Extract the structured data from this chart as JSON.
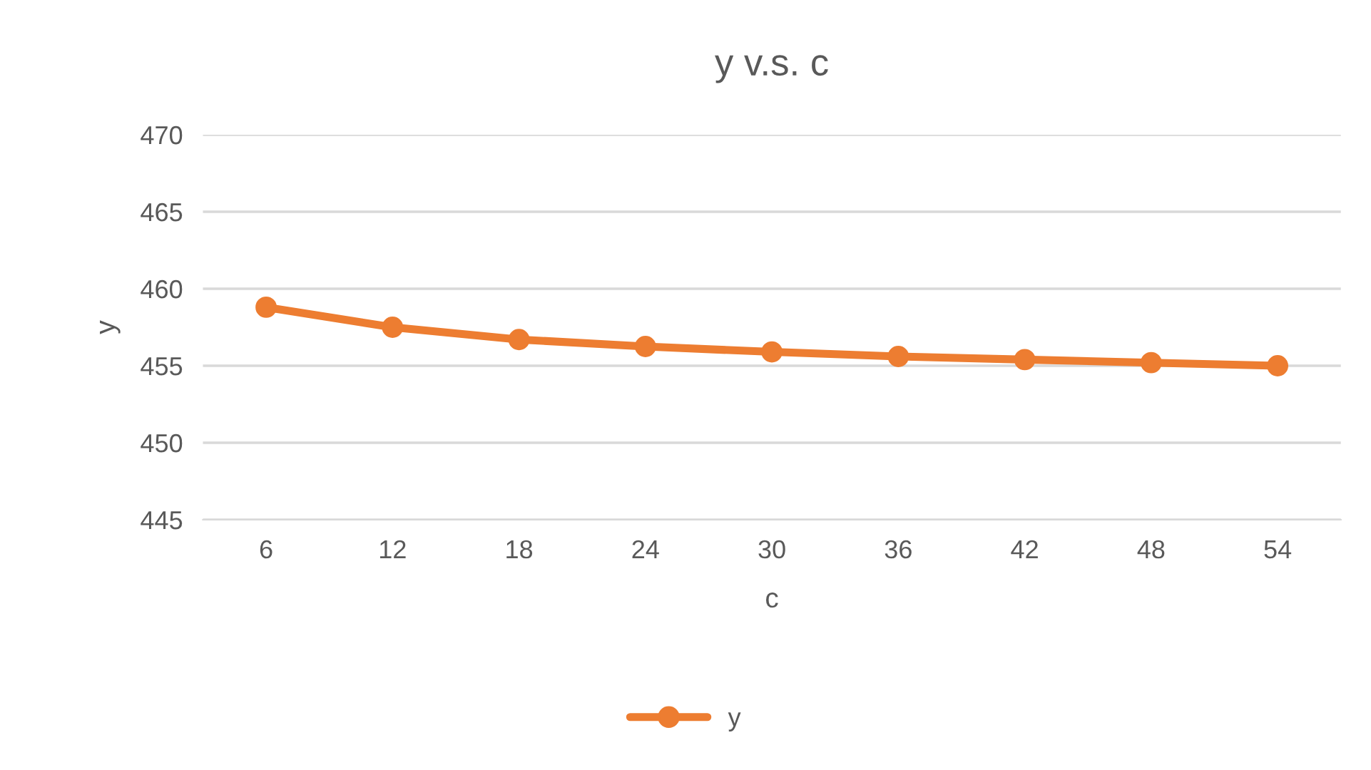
{
  "chart_data": {
    "type": "line",
    "title": "y v.s. c",
    "xlabel": "c",
    "ylabel": "y",
    "categories": [
      "6",
      "12",
      "18",
      "24",
      "30",
      "36",
      "42",
      "48",
      "54"
    ],
    "series": [
      {
        "name": "y",
        "color": "#ed7d31",
        "values": [
          458.8,
          457.5,
          456.7,
          456.25,
          455.9,
          455.6,
          455.4,
          455.2,
          455.0
        ]
      }
    ],
    "ylim": [
      445,
      470
    ],
    "yticks": [
      445,
      450,
      455,
      460,
      465,
      470
    ],
    "grid": "y",
    "legend": "bottom",
    "marker": "circle",
    "line_style": "solid"
  }
}
